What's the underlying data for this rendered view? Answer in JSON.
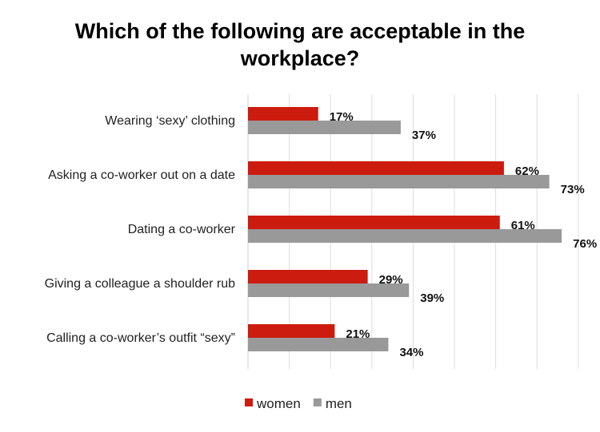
{
  "chart_data": {
    "type": "bar",
    "orientation": "horizontal",
    "title": "Which of the following are acceptable in the workplace?",
    "categories": [
      "Wearing ‘sexy’ clothing",
      "Asking a co-worker out on a date",
      "Dating a co-worker",
      "Giving a colleague a shoulder rub",
      "Calling a co-worker’s outfit “sexy”"
    ],
    "series": [
      {
        "name": "women",
        "color": "#cc1b0f",
        "values": [
          17,
          62,
          61,
          29,
          21
        ],
        "labels": [
          "17%",
          "62%",
          "61%",
          "29%",
          "21%"
        ]
      },
      {
        "name": "men",
        "color": "#999999",
        "values": [
          37,
          73,
          76,
          39,
          34
        ],
        "labels": [
          "37%",
          "73%",
          "76%",
          "39%",
          "34%"
        ]
      }
    ],
    "xlim": [
      0,
      80
    ],
    "grid": true,
    "legend": "bottom"
  }
}
